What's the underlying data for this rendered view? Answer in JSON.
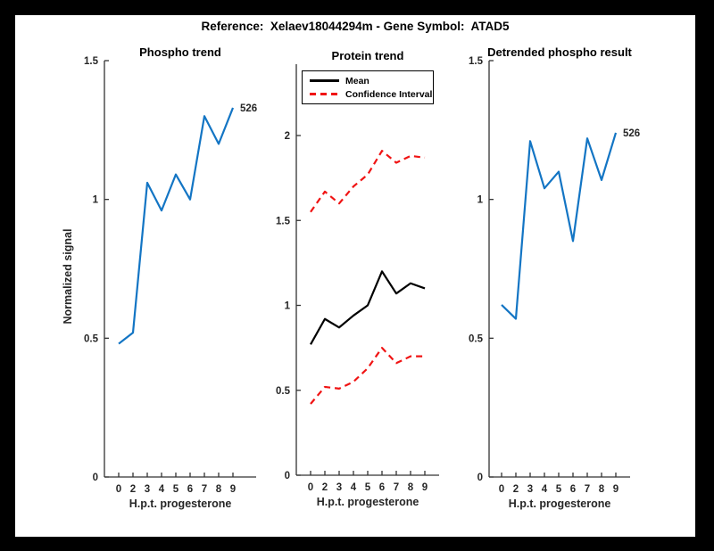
{
  "window": {
    "frame_color": "#000000",
    "canvas_color": "#ffffff"
  },
  "header": {
    "title": "Reference:  Xelaev18044294m - Gene Symbol:  ATAD5"
  },
  "colors": {
    "line_blue": "#1375c4",
    "line_red": "#f01414",
    "line_black": "#000000",
    "tick_text": "#262626",
    "spine": "#333333"
  },
  "chart_data": [
    {
      "type": "line",
      "title": "Phospho trend",
      "xlabel": "H.p.t. progesterone",
      "ylabel": "Normalized signal",
      "categories": [
        "0",
        "2",
        "3",
        "4",
        "5",
        "6",
        "7",
        "8",
        "9"
      ],
      "ylim": [
        0,
        1.5
      ],
      "yticks": [
        "0",
        "0.5",
        "1",
        "1.5"
      ],
      "grid": false,
      "legend": null,
      "end_label": "526",
      "series": [
        {
          "name": "phospho-signal",
          "color": "#1375c4",
          "dashed": false,
          "values": [
            0.48,
            0.52,
            1.06,
            0.96,
            1.09,
            1.0,
            1.3,
            1.2,
            1.33
          ]
        }
      ]
    },
    {
      "type": "line",
      "title": "Protein trend",
      "xlabel": "H.p.t. progesterone",
      "ylabel": "",
      "categories": [
        "0",
        "2",
        "3",
        "4",
        "5",
        "6",
        "7",
        "8",
        "9"
      ],
      "ylim": [
        0,
        2.42
      ],
      "yticks": [
        "0",
        "0.5",
        "1",
        "1.5",
        "2"
      ],
      "grid": false,
      "legend": {
        "position": "top-left",
        "entries": [
          {
            "label": "Mean",
            "color": "#000000",
            "dashed": false
          },
          {
            "label": "Confidence Interval",
            "color": "#f01414",
            "dashed": true
          }
        ]
      },
      "end_label": null,
      "series": [
        {
          "name": "mean",
          "color": "#000000",
          "dashed": false,
          "values": [
            0.77,
            0.92,
            0.87,
            0.94,
            1.0,
            1.2,
            1.07,
            1.13,
            1.1
          ]
        },
        {
          "name": "confidence-upper",
          "color": "#f01414",
          "dashed": true,
          "values": [
            1.55,
            1.67,
            1.6,
            1.7,
            1.77,
            1.91,
            1.84,
            1.88,
            1.87
          ]
        },
        {
          "name": "confidence-lower",
          "color": "#f01414",
          "dashed": true,
          "values": [
            0.42,
            0.52,
            0.51,
            0.55,
            0.63,
            0.75,
            0.66,
            0.7,
            0.7
          ]
        }
      ]
    },
    {
      "type": "line",
      "title": "Detrended phospho result",
      "xlabel": "H.p.t. progesterone",
      "ylabel": "",
      "categories": [
        "0",
        "2",
        "3",
        "4",
        "5",
        "6",
        "7",
        "8",
        "9"
      ],
      "ylim": [
        0,
        1.5
      ],
      "yticks": [
        "0",
        "0.5",
        "1",
        "1.5"
      ],
      "grid": false,
      "legend": null,
      "end_label": "526",
      "series": [
        {
          "name": "detrended-phospho-signal",
          "color": "#1375c4",
          "dashed": false,
          "values": [
            0.62,
            0.57,
            1.21,
            1.04,
            1.1,
            0.85,
            1.22,
            1.07,
            1.24
          ]
        }
      ]
    }
  ]
}
